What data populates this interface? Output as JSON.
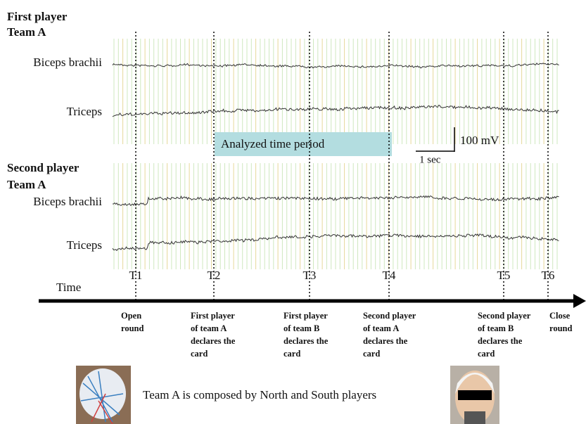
{
  "panels": [
    {
      "player": "First player",
      "team": "Team A",
      "signals": [
        "Biceps brachii",
        "Triceps"
      ]
    },
    {
      "player": "Second player",
      "team": "Team A",
      "signals": [
        "Biceps brachii",
        "Triceps"
      ]
    }
  ],
  "analyzed_period": "Analyzed time period",
  "scale_bar": {
    "vertical": "100 mV",
    "horizontal": "1 sec"
  },
  "timeline": {
    "label": "Time",
    "events": [
      {
        "label": "T1",
        "description": [
          "Open",
          "round"
        ]
      },
      {
        "label": "T2",
        "description": [
          "First player",
          "of team A",
          "declares the",
          "card"
        ]
      },
      {
        "label": "T3",
        "description": [
          "First player",
          "of team B",
          "declares the",
          "card"
        ]
      },
      {
        "label": "T4",
        "description": [
          "Second player",
          "of team A",
          "declares the",
          "card"
        ]
      },
      {
        "label": "T5",
        "description": [
          "Second player",
          "of team B",
          "declares the",
          "card"
        ]
      },
      {
        "label": "T6",
        "description": [
          "Close",
          "round"
        ]
      }
    ]
  },
  "caption": "Team A is composed by North and South players"
}
